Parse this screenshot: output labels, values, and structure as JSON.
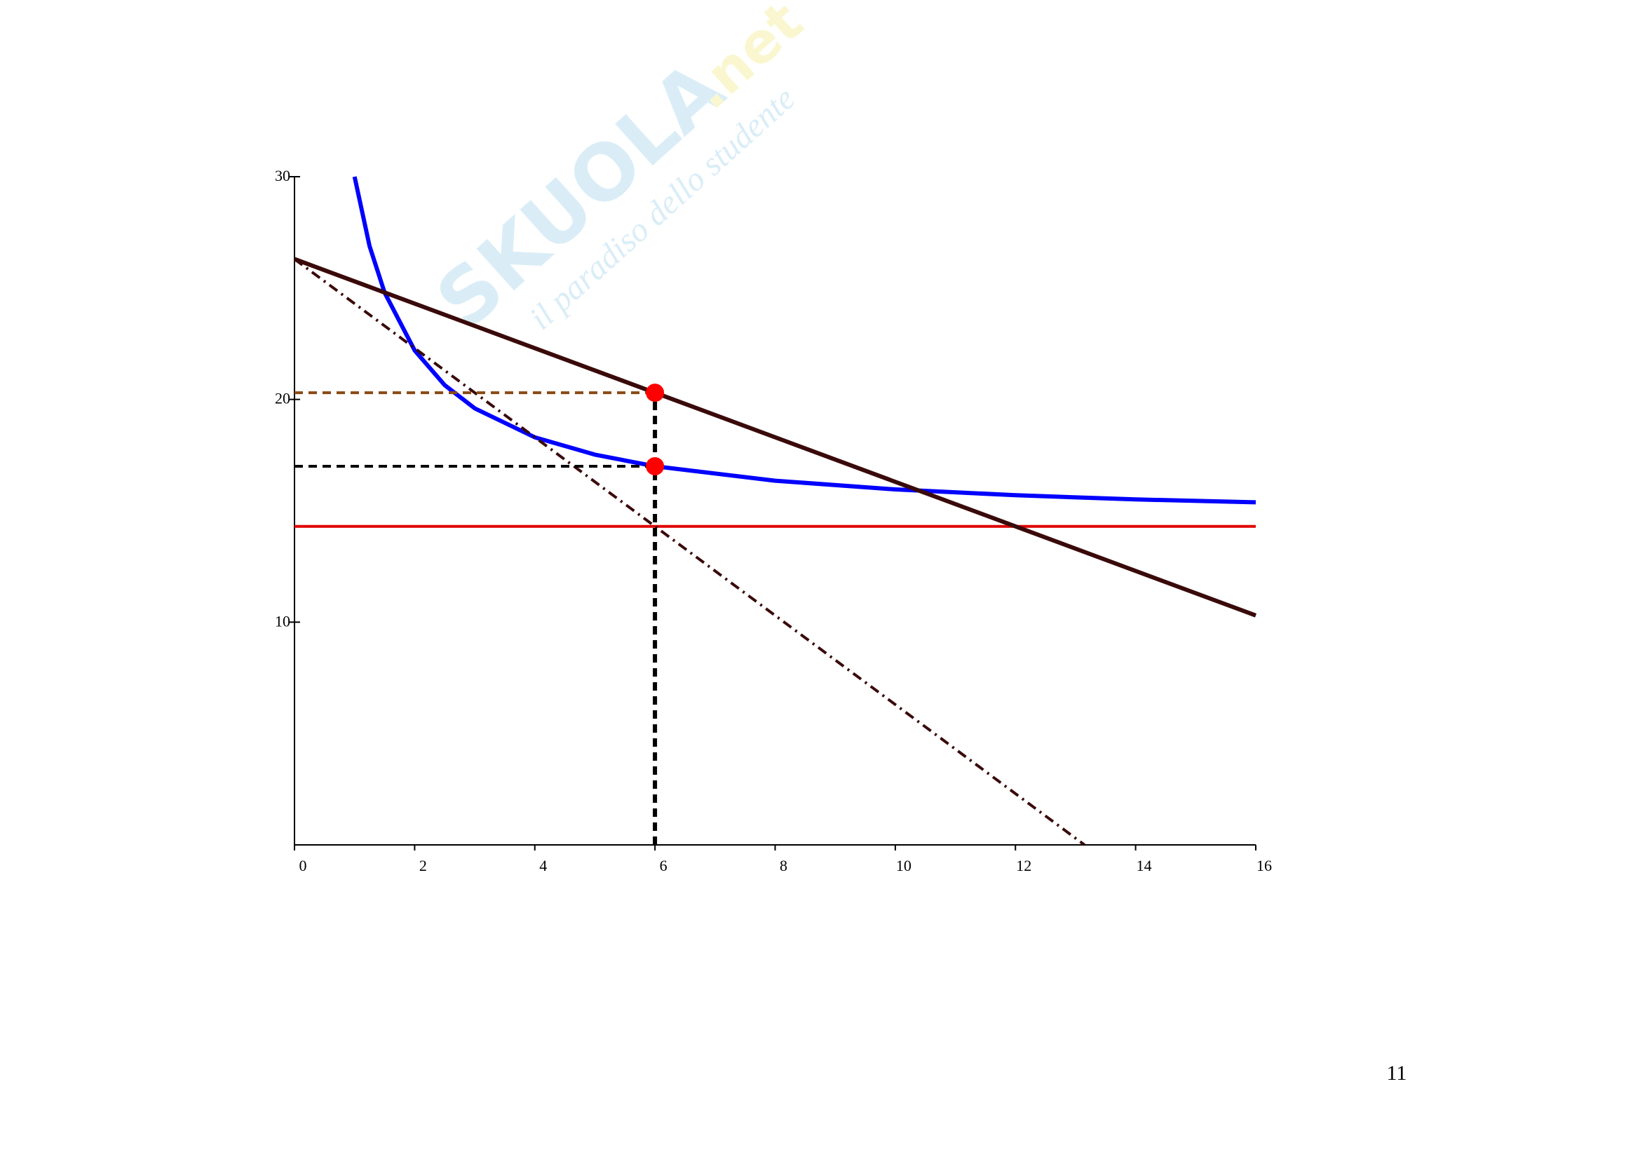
{
  "watermark": {
    "brand": "SKUOLA",
    "domain": ".net",
    "tagline": "il paradiso dello studente"
  },
  "page_number": "11",
  "chart_data": {
    "type": "line",
    "xlim": [
      0,
      16
    ],
    "ylim": [
      0,
      30
    ],
    "xticks": [
      0,
      2,
      4,
      6,
      8,
      10,
      12,
      14,
      16
    ],
    "yticks": [
      10,
      20,
      30
    ],
    "series": [
      {
        "color": "#0000ff",
        "style": "thick",
        "x": [
          1,
          1.25,
          1.5,
          2,
          2.5,
          3,
          4,
          5,
          6,
          8,
          10,
          12,
          14,
          16
        ],
        "values": [
          30,
          26.88,
          24.8,
          22.2,
          20.64,
          19.6,
          18.3,
          17.52,
          17,
          16.35,
          15.96,
          15.7,
          15.51,
          15.38
        ]
      },
      {
        "color": "#e00000",
        "style": "solid",
        "x": [
          0,
          16
        ],
        "values": [
          14.3,
          14.3
        ]
      },
      {
        "color": "#3a0a0a",
        "style": "thick",
        "x": [
          0,
          16
        ],
        "values": [
          26.3,
          10.3
        ]
      },
      {
        "color": "#3a0a0a",
        "style": "dashdot",
        "x": [
          0,
          13.15
        ],
        "values": [
          26.3,
          0
        ]
      },
      {
        "color": "#8b4a14",
        "style": "dash",
        "x": [
          0,
          6
        ],
        "values": [
          20.3,
          20.3
        ]
      },
      {
        "color": "#000000",
        "style": "dash",
        "x": [
          0,
          6
        ],
        "values": [
          17,
          17
        ]
      },
      {
        "color": "#000000",
        "style": "dashthick",
        "x": [
          6,
          6
        ],
        "values": [
          0,
          20.3
        ]
      },
      {
        "color": "#ff0000",
        "style": "points",
        "x": [
          6,
          6
        ],
        "values": [
          20.3,
          17
        ]
      }
    ]
  }
}
